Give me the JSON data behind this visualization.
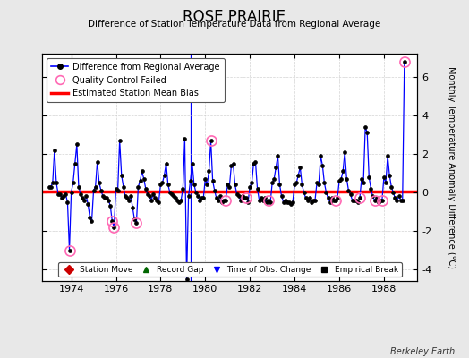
{
  "title": "ROSE PRAIRIE",
  "subtitle": "Difference of Station Temperature Data from Regional Average",
  "ylabel_right": "Monthly Temperature Anomaly Difference (°C)",
  "credit": "Berkeley Earth",
  "ylim": [
    -4.6,
    7.2
  ],
  "xlim": [
    1972.7,
    1989.5
  ],
  "yticks": [
    -4,
    -2,
    0,
    2,
    4,
    6
  ],
  "xticks": [
    1974,
    1976,
    1978,
    1980,
    1982,
    1984,
    1986,
    1988
  ],
  "bias_value": 0.05,
  "time_of_obs_change_x": 1979.33,
  "bg_color": "#e8e8e8",
  "plot_bg_color": "#ffffff",
  "line_color": "#0000ff",
  "bias_color": "#ff0000",
  "qc_color": "#ff69b4",
  "months": [
    1973.0,
    1973.083,
    1973.167,
    1973.25,
    1973.333,
    1973.417,
    1973.5,
    1973.583,
    1973.667,
    1973.75,
    1973.833,
    1973.917,
    1974.0,
    1974.083,
    1974.167,
    1974.25,
    1974.333,
    1974.417,
    1974.5,
    1974.583,
    1974.667,
    1974.75,
    1974.833,
    1974.917,
    1975.0,
    1975.083,
    1975.167,
    1975.25,
    1975.333,
    1975.417,
    1975.5,
    1975.583,
    1975.667,
    1975.75,
    1975.833,
    1975.917,
    1976.0,
    1976.083,
    1976.167,
    1976.25,
    1976.333,
    1976.417,
    1976.5,
    1976.583,
    1976.667,
    1976.75,
    1976.833,
    1976.917,
    1977.0,
    1977.083,
    1977.167,
    1977.25,
    1977.333,
    1977.417,
    1977.5,
    1977.583,
    1977.667,
    1977.75,
    1977.833,
    1977.917,
    1978.0,
    1978.083,
    1978.167,
    1978.25,
    1978.333,
    1978.417,
    1978.5,
    1978.583,
    1978.667,
    1978.75,
    1978.833,
    1978.917,
    1979.0,
    1979.083,
    1979.167,
    1979.25,
    1979.333,
    1979.417,
    1979.5,
    1979.583,
    1979.667,
    1979.75,
    1979.833,
    1979.917,
    1980.0,
    1980.083,
    1980.167,
    1980.25,
    1980.333,
    1980.417,
    1980.5,
    1980.583,
    1980.667,
    1980.75,
    1980.833,
    1980.917,
    1981.0,
    1981.083,
    1981.167,
    1981.25,
    1981.333,
    1981.417,
    1981.5,
    1981.583,
    1981.667,
    1981.75,
    1981.833,
    1981.917,
    1982.0,
    1982.083,
    1982.167,
    1982.25,
    1982.333,
    1982.417,
    1982.5,
    1982.583,
    1982.667,
    1982.75,
    1982.833,
    1982.917,
    1983.0,
    1983.083,
    1983.167,
    1983.25,
    1983.333,
    1983.417,
    1983.5,
    1983.583,
    1983.667,
    1983.75,
    1983.833,
    1983.917,
    1984.0,
    1984.083,
    1984.167,
    1984.25,
    1984.333,
    1984.417,
    1984.5,
    1984.583,
    1984.667,
    1984.75,
    1984.833,
    1984.917,
    1985.0,
    1985.083,
    1985.167,
    1985.25,
    1985.333,
    1985.417,
    1985.5,
    1985.583,
    1985.667,
    1985.75,
    1985.833,
    1985.917,
    1986.0,
    1986.083,
    1986.167,
    1986.25,
    1986.333,
    1986.417,
    1986.5,
    1986.583,
    1986.667,
    1986.75,
    1986.833,
    1986.917,
    1987.0,
    1987.083,
    1987.167,
    1987.25,
    1987.333,
    1987.417,
    1987.5,
    1987.583,
    1987.667,
    1987.75,
    1987.833,
    1987.917,
    1988.0,
    1988.083,
    1988.167,
    1988.25,
    1988.333,
    1988.417,
    1988.5,
    1988.583,
    1988.667,
    1988.75,
    1988.833,
    1988.917
  ],
  "values": [
    0.3,
    0.3,
    0.5,
    2.2,
    0.5,
    -0.1,
    -0.1,
    -0.3,
    -0.2,
    -0.1,
    -0.5,
    -3.0,
    0.0,
    0.5,
    1.5,
    2.5,
    0.3,
    -0.1,
    -0.3,
    -0.4,
    -0.2,
    -0.6,
    -1.3,
    -1.5,
    0.1,
    0.3,
    1.6,
    0.5,
    0.1,
    -0.2,
    -0.3,
    -0.3,
    -0.4,
    -0.7,
    -1.5,
    -1.8,
    0.2,
    0.1,
    2.7,
    0.9,
    0.3,
    -0.2,
    -0.3,
    -0.4,
    -0.2,
    -0.8,
    -1.4,
    -1.6,
    0.3,
    0.6,
    1.1,
    0.7,
    0.2,
    -0.1,
    -0.2,
    -0.4,
    -0.1,
    -0.3,
    -0.4,
    -0.5,
    0.4,
    0.5,
    0.9,
    1.5,
    0.4,
    0.0,
    -0.1,
    -0.2,
    -0.3,
    -0.4,
    -0.5,
    -0.4,
    0.2,
    2.8,
    -4.5,
    -0.2,
    0.6,
    1.5,
    0.4,
    0.0,
    -0.2,
    -0.4,
    -0.3,
    -0.3,
    0.7,
    0.4,
    1.1,
    2.7,
    0.6,
    0.1,
    -0.3,
    -0.4,
    -0.2,
    -0.5,
    -0.4,
    -0.4,
    0.4,
    0.3,
    1.4,
    1.5,
    0.4,
    -0.1,
    -0.2,
    -0.4,
    -0.2,
    -0.3,
    -0.3,
    -0.5,
    0.3,
    0.5,
    1.5,
    1.6,
    0.2,
    -0.4,
    -0.3,
    -0.4,
    -0.3,
    -0.5,
    -0.4,
    -0.5,
    0.5,
    0.7,
    1.3,
    1.9,
    0.4,
    -0.2,
    -0.5,
    -0.4,
    -0.5,
    -0.5,
    -0.6,
    -0.5,
    0.4,
    0.5,
    0.9,
    1.3,
    0.4,
    0.0,
    -0.3,
    -0.4,
    -0.3,
    -0.5,
    -0.4,
    -0.4,
    0.5,
    0.4,
    1.9,
    1.4,
    0.5,
    0.0,
    -0.3,
    -0.5,
    -0.3,
    -0.4,
    -0.4,
    -0.3,
    0.6,
    0.7,
    1.1,
    2.1,
    0.7,
    0.1,
    -0.1,
    -0.4,
    -0.4,
    -0.4,
    -0.5,
    -0.3,
    0.7,
    0.5,
    3.4,
    3.1,
    0.8,
    0.2,
    -0.2,
    -0.4,
    -0.3,
    -0.5,
    -0.4,
    -0.4,
    0.8,
    0.5,
    1.9,
    0.9,
    0.3,
    0.0,
    -0.3,
    -0.4,
    -0.2,
    -0.4,
    -0.4,
    6.8
  ],
  "qc_failed_months": [
    1973.917,
    1975.833,
    1975.917,
    1976.917,
    1980.25,
    1980.917,
    1981.833,
    1982.833,
    1985.833,
    1986.917,
    1987.583,
    1987.917,
    1988.917
  ]
}
